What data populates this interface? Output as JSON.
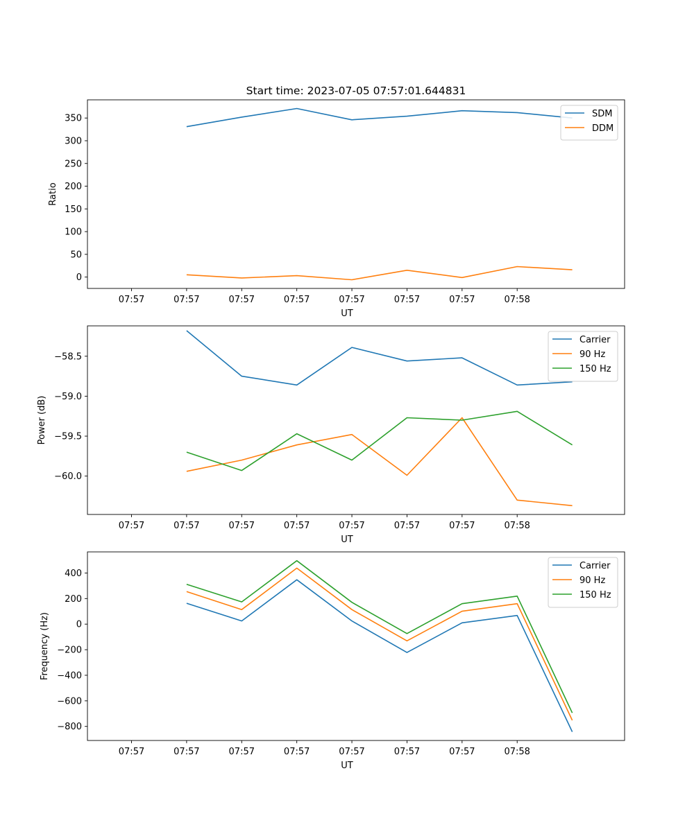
{
  "chart_data": [
    {
      "type": "line",
      "title": "Start time: 2023-07-05 07:57:01.644831",
      "xlabel": "UT",
      "ylabel": "Ratio",
      "x_ticks": [
        "07:57",
        "07:57",
        "07:57",
        "07:57",
        "07:57",
        "07:57",
        "07:57",
        "07:58"
      ],
      "xlim": [
        -0.8,
        8.95
      ],
      "x": [
        1,
        2,
        3,
        4,
        5,
        6,
        7,
        8
      ],
      "y_ticks": [
        0,
        50,
        100,
        150,
        200,
        250,
        300,
        350
      ],
      "ylim": [
        -25,
        390
      ],
      "legend": "top-right",
      "series": [
        {
          "name": "SDM",
          "color": "#1f77b4",
          "values": [
            331,
            352,
            371,
            346,
            354,
            366,
            362,
            350
          ]
        },
        {
          "name": "DDM",
          "color": "#ff7f0e",
          "values": [
            5,
            -2,
            3,
            -6,
            15,
            -1,
            23,
            16
          ]
        }
      ]
    },
    {
      "type": "line",
      "title": "",
      "xlabel": "UT",
      "ylabel": "Power (dB)",
      "x_ticks": [
        "07:57",
        "07:57",
        "07:57",
        "07:57",
        "07:57",
        "07:57",
        "07:57",
        "07:58"
      ],
      "xlim": [
        -0.8,
        8.95
      ],
      "x": [
        1,
        2,
        3,
        4,
        5,
        6,
        7,
        8
      ],
      "y_ticks": [
        -58.5,
        -59.0,
        -59.5,
        -60.0
      ],
      "y_tick_labels": [
        "−58.5",
        "−59.0",
        "−59.5",
        "−60.0"
      ],
      "ylim": [
        -60.48,
        -58.12
      ],
      "legend": "top-right",
      "series": [
        {
          "name": "Carrier",
          "color": "#1f77b4",
          "values": [
            -58.18,
            -58.75,
            -58.86,
            -58.39,
            -58.56,
            -58.52,
            -58.86,
            -58.82
          ]
        },
        {
          "name": "90 Hz",
          "color": "#ff7f0e",
          "values": [
            -59.94,
            -59.8,
            -59.61,
            -59.48,
            -59.99,
            -59.27,
            -60.3,
            -60.37
          ]
        },
        {
          "name": "150 Hz",
          "color": "#2ca02c",
          "values": [
            -59.7,
            -59.93,
            -59.47,
            -59.8,
            -59.27,
            -59.3,
            -59.19,
            -59.61
          ]
        }
      ]
    },
    {
      "type": "line",
      "title": "",
      "xlabel": "UT",
      "ylabel": "Frequency (Hz)",
      "x_ticks": [
        "07:57",
        "07:57",
        "07:57",
        "07:57",
        "07:57",
        "07:57",
        "07:57",
        "07:58"
      ],
      "xlim": [
        -0.8,
        8.95
      ],
      "x": [
        1,
        2,
        3,
        4,
        5,
        6,
        7,
        8
      ],
      "y_ticks": [
        400,
        200,
        0,
        -200,
        -400,
        -600,
        -800
      ],
      "y_tick_labels": [
        "400",
        "200",
        "0",
        "−200",
        "−400",
        "−600",
        "−800"
      ],
      "ylim": [
        -910,
        565
      ],
      "legend": "top-right",
      "series": [
        {
          "name": "Carrier",
          "color": "#1f77b4",
          "values": [
            163,
            25,
            347,
            25,
            -222,
            10,
            68,
            -842
          ]
        },
        {
          "name": "90 Hz",
          "color": "#ff7f0e",
          "values": [
            255,
            114,
            438,
            114,
            -131,
            101,
            160,
            -752
          ]
        },
        {
          "name": "150 Hz",
          "color": "#2ca02c",
          "values": [
            311,
            174,
            496,
            171,
            -74,
            160,
            219,
            -694
          ]
        }
      ]
    }
  ]
}
